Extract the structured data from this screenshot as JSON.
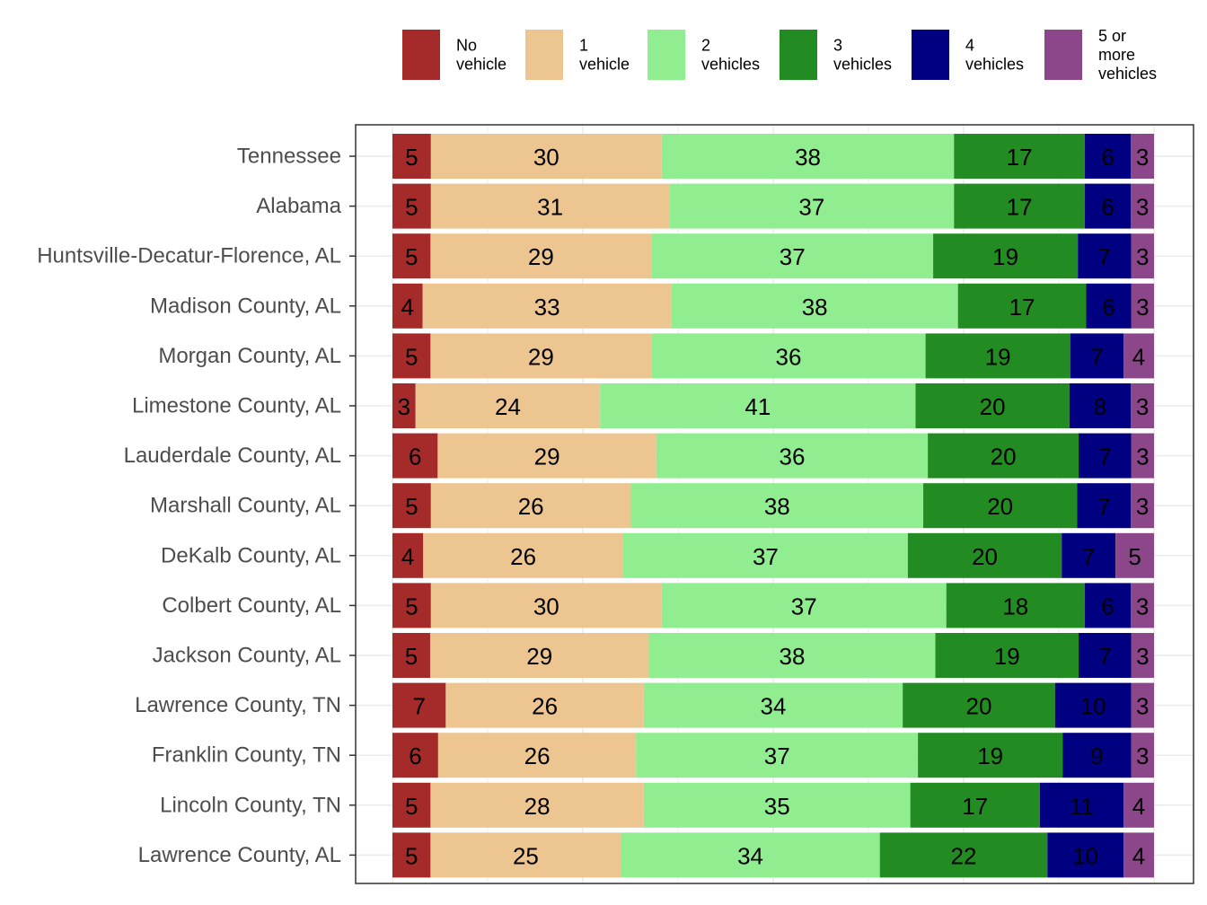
{
  "chart_data": {
    "type": "bar",
    "orientation": "horizontal",
    "stacked": true,
    "title": "",
    "xlabel": "",
    "ylabel": "",
    "xlim": [
      0,
      100
    ],
    "grid": true,
    "legend_position": "top-right",
    "categories": [
      "Tennessee",
      "Alabama",
      "Huntsville-Decatur-Florence, AL",
      "Madison County, AL",
      "Morgan County, AL",
      "Limestone County, AL",
      "Lauderdale County, AL",
      "Marshall County, AL",
      "DeKalb County, AL",
      "Colbert County, AL",
      "Jackson County, AL",
      "Lawrence County, TN",
      "Franklin County, TN",
      "Lincoln County, TN",
      "Lawrence County, AL"
    ],
    "series": [
      {
        "name": "No vehicle",
        "legend_lines": [
          "No",
          "vehicle"
        ],
        "color": "#a52a2a",
        "values": [
          5,
          5,
          5,
          4,
          5,
          3,
          6,
          5,
          4,
          5,
          5,
          7,
          6,
          5,
          5
        ]
      },
      {
        "name": "1 vehicle",
        "legend_lines": [
          "1",
          "vehicle"
        ],
        "color": "#edc591",
        "values": [
          30,
          31,
          29,
          33,
          29,
          24,
          29,
          26,
          26,
          30,
          29,
          26,
          26,
          28,
          25
        ]
      },
      {
        "name": "2 vehicles",
        "legend_lines": [
          "2",
          "vehicles"
        ],
        "color": "#90ee90",
        "values": [
          38,
          37,
          37,
          38,
          36,
          41,
          36,
          38,
          37,
          37,
          38,
          34,
          37,
          35,
          34
        ]
      },
      {
        "name": "3 vehicles",
        "legend_lines": [
          "3",
          "vehicles"
        ],
        "color": "#228b22",
        "values": [
          17,
          17,
          19,
          17,
          19,
          20,
          20,
          20,
          20,
          18,
          19,
          20,
          19,
          17,
          22
        ]
      },
      {
        "name": "4 vehicles",
        "legend_lines": [
          "4",
          "vehicles"
        ],
        "color": "#000080",
        "values": [
          6,
          6,
          7,
          6,
          7,
          8,
          7,
          7,
          7,
          6,
          7,
          10,
          9,
          11,
          10
        ]
      },
      {
        "name": "5 or more vehicles",
        "legend_lines": [
          "5 or",
          "more",
          "vehicles"
        ],
        "color": "#8b4789",
        "values": [
          3,
          3,
          3,
          3,
          4,
          3,
          3,
          3,
          5,
          3,
          3,
          3,
          3,
          4,
          4
        ]
      }
    ]
  }
}
